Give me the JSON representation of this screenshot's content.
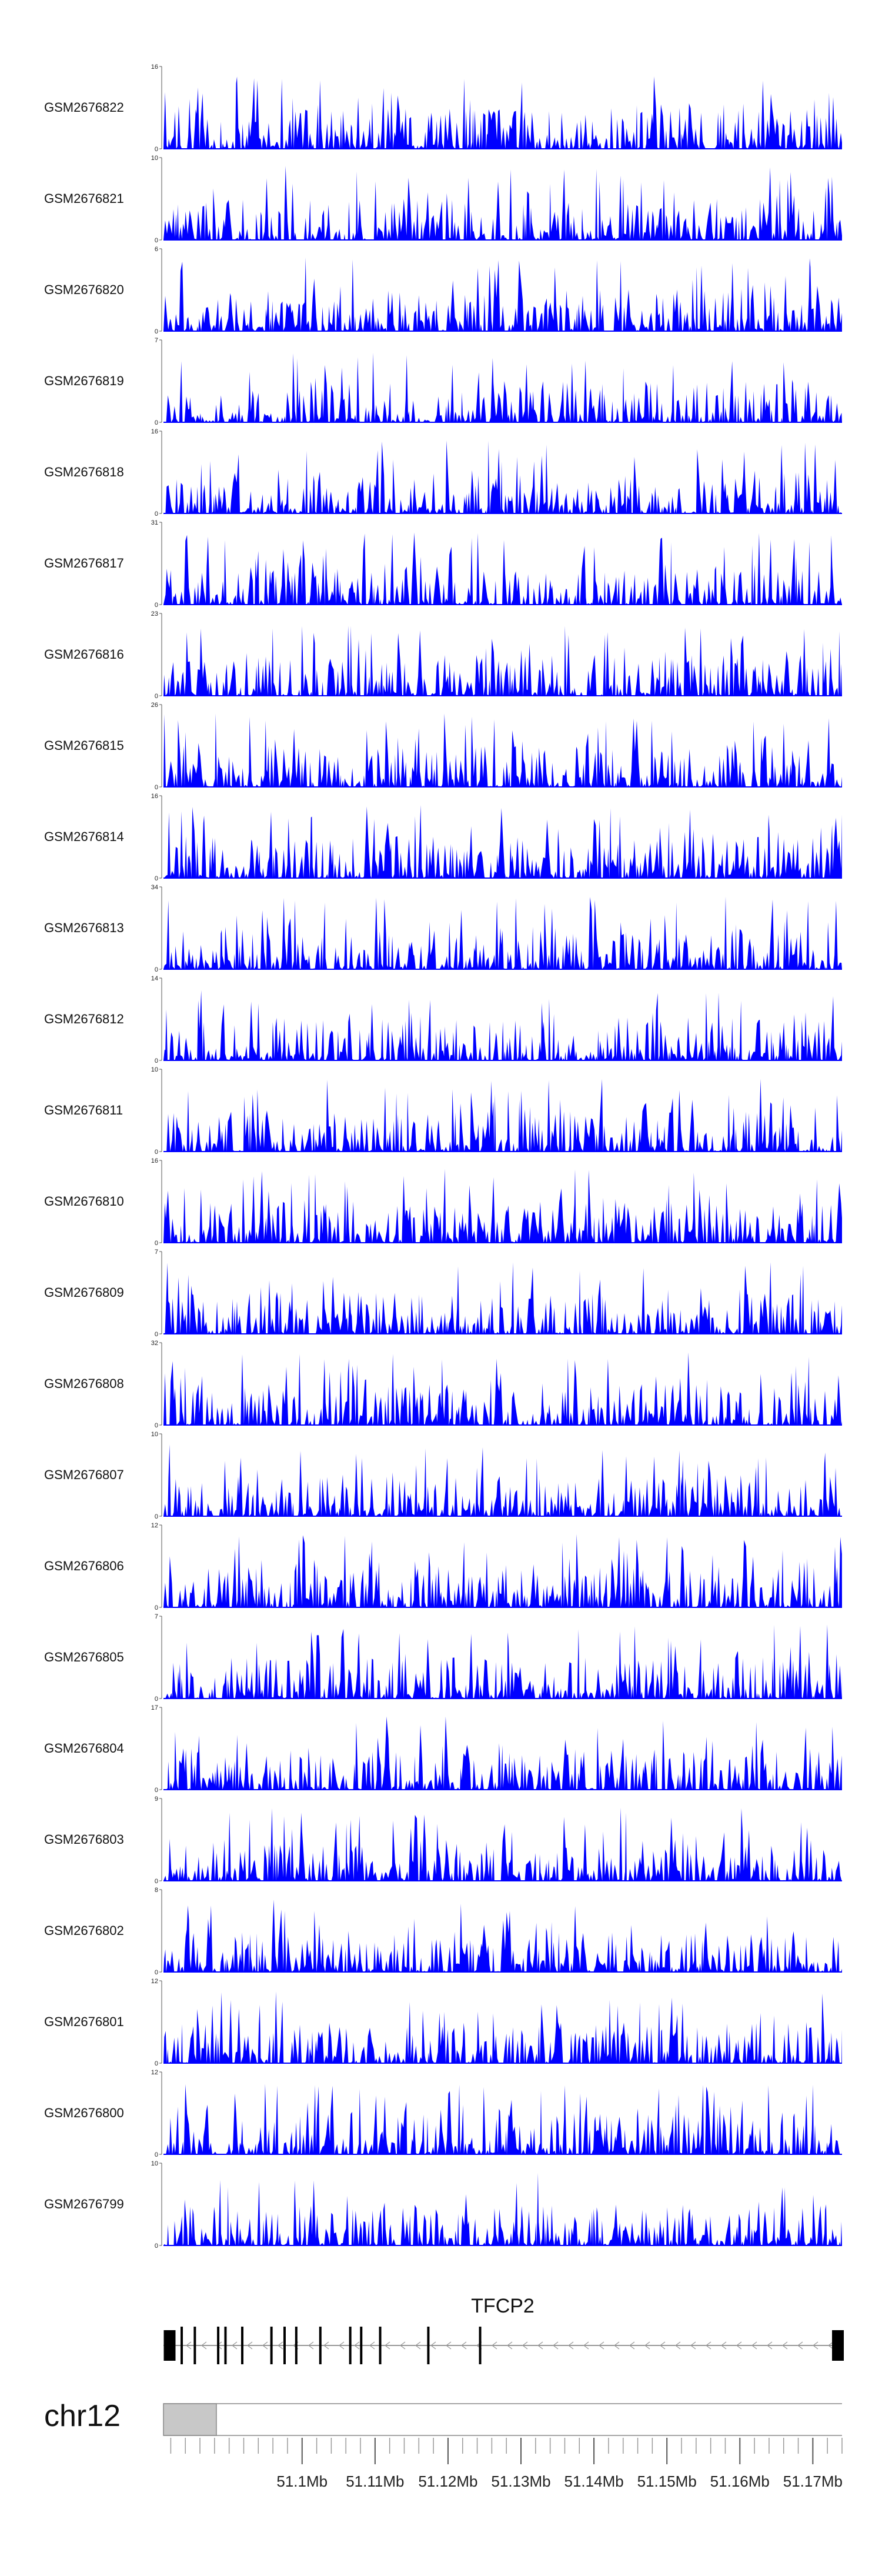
{
  "chart_data": {
    "type": "area",
    "colors": {
      "signal": "#0000ff",
      "axis": "#555555",
      "gene": "#000000",
      "ideogram": "#c8c8c8"
    },
    "x_range_mb": [
      51.081,
      51.174
    ],
    "tracks": [
      {
        "name": "GSM2676822",
        "ymax": "16",
        "ymin": "0"
      },
      {
        "name": "GSM2676821",
        "ymax": "10",
        "ymin": "0"
      },
      {
        "name": "GSM2676820",
        "ymax": "6",
        "ymin": "0"
      },
      {
        "name": "GSM2676819",
        "ymax": "7",
        "ymin": "0"
      },
      {
        "name": "GSM2676818",
        "ymax": "16",
        "ymin": "0"
      },
      {
        "name": "GSM2676817",
        "ymax": "31",
        "ymin": "0"
      },
      {
        "name": "GSM2676816",
        "ymax": "23",
        "ymin": "0"
      },
      {
        "name": "GSM2676815",
        "ymax": "26",
        "ymin": "0"
      },
      {
        "name": "GSM2676814",
        "ymax": "16",
        "ymin": "0"
      },
      {
        "name": "GSM2676813",
        "ymax": "34",
        "ymin": "0"
      },
      {
        "name": "GSM2676812",
        "ymax": "14",
        "ymin": "0"
      },
      {
        "name": "GSM2676811",
        "ymax": "10",
        "ymin": "0"
      },
      {
        "name": "GSM2676810",
        "ymax": "16",
        "ymin": "0"
      },
      {
        "name": "GSM2676809",
        "ymax": "7",
        "ymin": "0"
      },
      {
        "name": "GSM2676808",
        "ymax": "32",
        "ymin": "0"
      },
      {
        "name": "GSM2676807",
        "ymax": "10",
        "ymin": "0"
      },
      {
        "name": "GSM2676806",
        "ymax": "12",
        "ymin": "0"
      },
      {
        "name": "GSM2676805",
        "ymax": "7",
        "ymin": "0"
      },
      {
        "name": "GSM2676804",
        "ymax": "17",
        "ymin": "0"
      },
      {
        "name": "GSM2676803",
        "ymax": "9",
        "ymin": "0"
      },
      {
        "name": "GSM2676802",
        "ymax": "8",
        "ymin": "0"
      },
      {
        "name": "GSM2676801",
        "ymax": "12",
        "ymin": "0"
      },
      {
        "name": "GSM2676800",
        "ymax": "12",
        "ymin": "0"
      },
      {
        "name": "GSM2676799",
        "ymax": "10",
        "ymin": "0"
      }
    ],
    "gene": {
      "name": "TFCP2",
      "strand": "-",
      "start_mb": 51.081,
      "end_mb": 51.174,
      "exons_mb": [
        51.0812,
        51.0835,
        51.0853,
        51.0885,
        51.0895,
        51.0918,
        51.0958,
        51.0976,
        51.0992,
        51.1025,
        51.1066,
        51.1081,
        51.1107,
        51.1173,
        51.1244,
        51.1736
      ]
    },
    "chromosome": "chr12",
    "x_ticks": [
      "51.1Mb",
      "51.11Mb",
      "51.12Mb",
      "51.13Mb",
      "51.14Mb",
      "51.15Mb",
      "51.16Mb",
      "51.17Mb"
    ],
    "x_tick_values_mb": [
      51.1,
      51.11,
      51.12,
      51.13,
      51.14,
      51.15,
      51.16,
      51.17
    ]
  }
}
